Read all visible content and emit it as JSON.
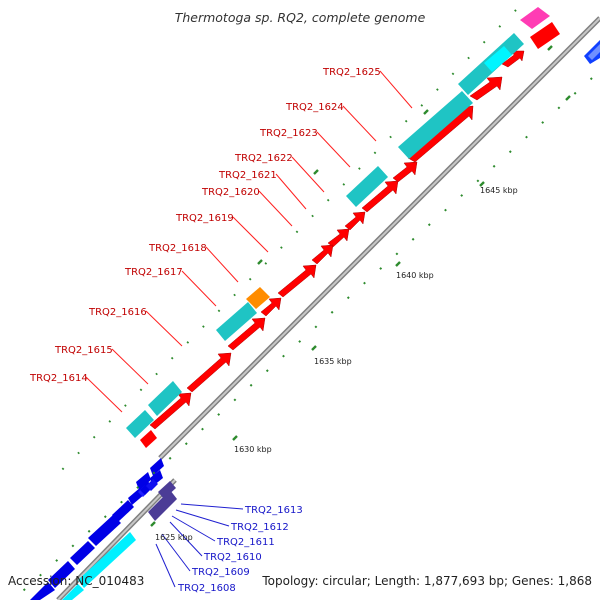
{
  "title": "Thermotoga sp. RQ2, complete genome",
  "accession": "Accession: NC_010483",
  "summary": "Topology: circular; Length: 1,877,693 bp; Genes: 1,868",
  "scale_labels": [
    "1625 kbp",
    "1630 kbp",
    "1635 kbp",
    "1640 kbp",
    "1645 kbp"
  ],
  "red_genes": [
    "TRQ2_1614",
    "TRQ2_1615",
    "TRQ2_1616",
    "TRQ2_1617",
    "TRQ2_1618",
    "TRQ2_1619",
    "TRQ2_1620",
    "TRQ2_1621",
    "TRQ2_1622",
    "TRQ2_1623",
    "TRQ2_1624",
    "TRQ2_1625"
  ],
  "blue_genes": [
    "TRQ2_1608",
    "TRQ2_1609",
    "TRQ2_1610",
    "TRQ2_1611",
    "TRQ2_1612",
    "TRQ2_1613"
  ],
  "colors": {
    "cds_forward": "#ff0000",
    "gene_feature": "#1fc4c4",
    "cds_reverse": "#0000e6",
    "gene_reverse": "#00f0ff",
    "rna": "#ff8c00",
    "other": "#ff3cb4",
    "cds_purple": "#4b3c96",
    "backbone": "#a0a0a0",
    "tick": "#2e8b2e"
  }
}
